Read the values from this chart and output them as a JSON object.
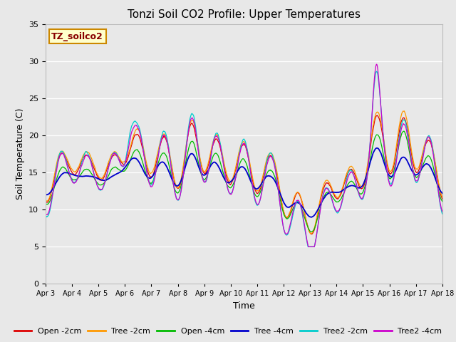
{
  "title": "Tonzi Soil CO2 Profile: Upper Temperatures",
  "xlabel": "Time",
  "ylabel": "Soil Temperature (C)",
  "ylim": [
    0,
    35
  ],
  "bg_color": "#e8e8e8",
  "watermark_text": "TZ_soilco2",
  "watermark_bg": "#ffffcc",
  "watermark_border": "#cc8800",
  "xtick_labels": [
    "Apr 3",
    "Apr 4",
    "Apr 5",
    "Apr 6",
    "Apr 7",
    "Apr 8",
    "Apr 9",
    "Apr 10",
    "Apr 11",
    "Apr 12",
    "Apr 13",
    "Apr 14",
    "Apr 15",
    "Apr 16",
    "Apr 17",
    "Apr 18"
  ],
  "series_colors": {
    "Open -2cm": "#dd0000",
    "Tree -2cm": "#ff9900",
    "Open -4cm": "#00bb00",
    "Tree -4cm": "#0000cc",
    "Tree2 -2cm": "#00cccc",
    "Tree2 -4cm": "#cc00cc"
  },
  "yticks": [
    0,
    5,
    10,
    15,
    20,
    25,
    30,
    35
  ]
}
